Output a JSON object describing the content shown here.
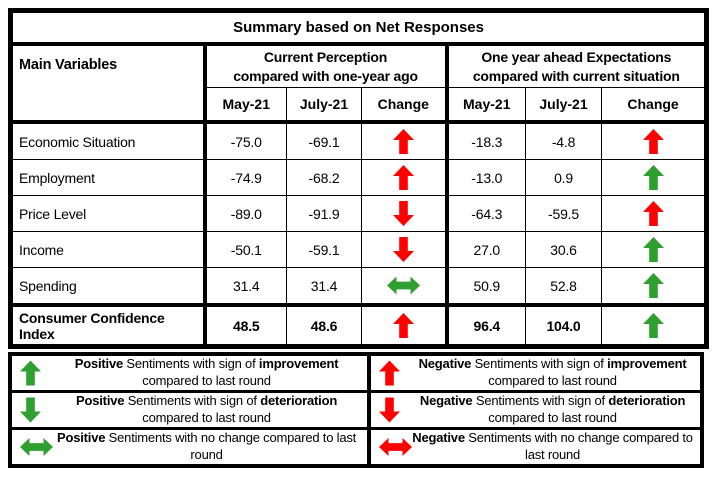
{
  "title": "Summary based on Net Responses",
  "colors": {
    "positive": "#2FA02F",
    "negative": "#FF0000",
    "border": "#000000",
    "background": "#FFFFFF"
  },
  "table": {
    "main_variables_header": "Main Variables",
    "group_headers": [
      "Current Perception\ncompared with one-year ago",
      "One year ahead Expectations\ncompared with current situation"
    ],
    "sub_headers": [
      "May-21",
      "July-21",
      "Change"
    ],
    "rows": [
      {
        "variable": "Economic Situation",
        "current": {
          "may": "-75.0",
          "july": "-69.1",
          "change": {
            "dir": "up",
            "sentiment": "negative"
          }
        },
        "ahead": {
          "may": "-18.3",
          "july": "-4.8",
          "change": {
            "dir": "up",
            "sentiment": "negative"
          }
        }
      },
      {
        "variable": "Employment",
        "current": {
          "may": "-74.9",
          "july": "-68.2",
          "change": {
            "dir": "up",
            "sentiment": "negative"
          }
        },
        "ahead": {
          "may": "-13.0",
          "july": "0.9",
          "change": {
            "dir": "up",
            "sentiment": "positive"
          }
        }
      },
      {
        "variable": "Price Level",
        "current": {
          "may": "-89.0",
          "july": "-91.9",
          "change": {
            "dir": "down",
            "sentiment": "negative"
          }
        },
        "ahead": {
          "may": "-64.3",
          "july": "-59.5",
          "change": {
            "dir": "up",
            "sentiment": "negative"
          }
        }
      },
      {
        "variable": "Income",
        "current": {
          "may": "-50.1",
          "july": "-59.1",
          "change": {
            "dir": "down",
            "sentiment": "negative"
          }
        },
        "ahead": {
          "may": "27.0",
          "july": "30.6",
          "change": {
            "dir": "up",
            "sentiment": "positive"
          }
        }
      },
      {
        "variable": "Spending",
        "current": {
          "may": "31.4",
          "july": "31.4",
          "change": {
            "dir": "both",
            "sentiment": "positive"
          }
        },
        "ahead": {
          "may": "50.9",
          "july": "52.8",
          "change": {
            "dir": "up",
            "sentiment": "positive"
          }
        }
      }
    ],
    "summary_row": {
      "variable": "Consumer Confidence Index",
      "current": {
        "may": "48.5",
        "july": "48.6",
        "change": {
          "dir": "up",
          "sentiment": "negative"
        }
      },
      "ahead": {
        "may": "96.4",
        "july": "104.0",
        "change": {
          "dir": "up",
          "sentiment": "positive"
        }
      }
    }
  },
  "legend": {
    "rows": [
      {
        "left": {
          "arrow": {
            "dir": "up",
            "sentiment": "positive"
          },
          "parts": [
            {
              "text": "Positive",
              "bold": true
            },
            {
              "text": " Sentiments with sign of ",
              "bold": false
            },
            {
              "text": "improvement",
              "bold": true
            },
            {
              "text": " compared to last round",
              "bold": false
            }
          ]
        },
        "right": {
          "arrow": {
            "dir": "up",
            "sentiment": "negative"
          },
          "parts": [
            {
              "text": "Negative",
              "bold": true
            },
            {
              "text": " Sentiments with sign of ",
              "bold": false
            },
            {
              "text": "improvement",
              "bold": true
            },
            {
              "text": " compared to last round",
              "bold": false
            }
          ]
        }
      },
      {
        "left": {
          "arrow": {
            "dir": "down",
            "sentiment": "positive"
          },
          "parts": [
            {
              "text": "Positive",
              "bold": true
            },
            {
              "text": " Sentiments with sign of ",
              "bold": false
            },
            {
              "text": "deterioration",
              "bold": true
            },
            {
              "text": " compared to last round",
              "bold": false
            }
          ]
        },
        "right": {
          "arrow": {
            "dir": "down",
            "sentiment": "negative"
          },
          "parts": [
            {
              "text": "Negative",
              "bold": true
            },
            {
              "text": " Sentiments with sign of ",
              "bold": false
            },
            {
              "text": "deterioration",
              "bold": true
            },
            {
              "text": " compared to last round",
              "bold": false
            }
          ]
        }
      },
      {
        "left": {
          "arrow": {
            "dir": "both",
            "sentiment": "positive"
          },
          "parts": [
            {
              "text": "Positive",
              "bold": true
            },
            {
              "text": " Sentiments with no change compared to last round",
              "bold": false
            }
          ]
        },
        "right": {
          "arrow": {
            "dir": "both",
            "sentiment": "negative"
          },
          "parts": [
            {
              "text": "Negative",
              "bold": true
            },
            {
              "text": " Sentiments with no change compared to last round",
              "bold": false
            }
          ]
        }
      }
    ]
  },
  "chart_data": {
    "type": "table",
    "title": "Summary based on Net Responses",
    "column_groups": [
      "Current Perception compared with one-year ago",
      "One year ahead Expectations compared with current situation"
    ],
    "columns": [
      "Main Variables",
      "May-21",
      "July-21",
      "Change",
      "May-21",
      "July-21",
      "Change"
    ],
    "rows": [
      [
        "Economic Situation",
        -75.0,
        -69.1,
        "up (red)",
        -18.3,
        -4.8,
        "up (red)"
      ],
      [
        "Employment",
        -74.9,
        -68.2,
        "up (red)",
        -13.0,
        0.9,
        "up (green)"
      ],
      [
        "Price Level",
        -89.0,
        -91.9,
        "down (red)",
        -64.3,
        -59.5,
        "up (red)"
      ],
      [
        "Income",
        -50.1,
        -59.1,
        "down (red)",
        27.0,
        30.6,
        "up (green)"
      ],
      [
        "Spending",
        31.4,
        31.4,
        "no change (green)",
        50.9,
        52.8,
        "up (green)"
      ],
      [
        "Consumer Confidence Index",
        48.5,
        48.6,
        "up (red)",
        96.4,
        104.0,
        "up (green)"
      ]
    ],
    "legend": [
      "green up = Positive Sentiments with sign of improvement compared to last round",
      "red up = Negative Sentiments with sign of improvement compared to last round",
      "green down = Positive Sentiments with sign of deterioration compared to last round",
      "red down = Negative Sentiments with sign of deterioration compared to last round",
      "green left-right = Positive Sentiments with no change compared to last round",
      "red left-right = Negative Sentiments with no change compared to last round"
    ]
  }
}
